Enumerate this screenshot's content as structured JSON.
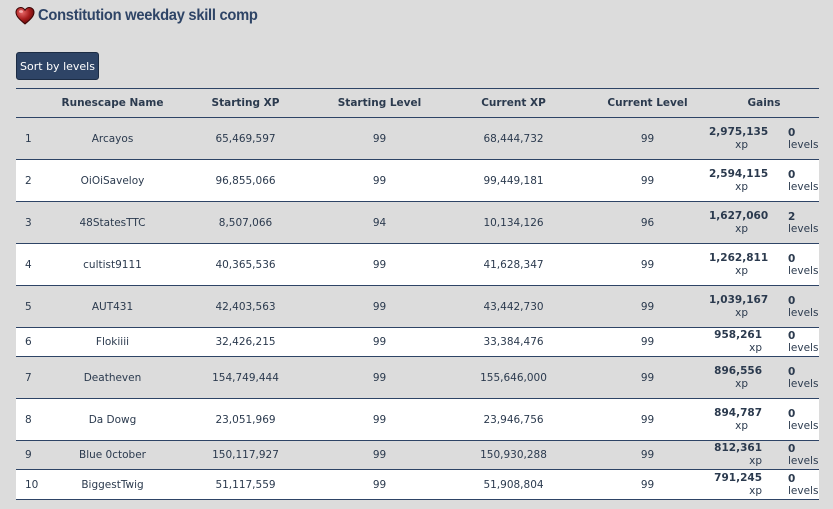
{
  "title": "Constitution weekday skill comp",
  "icons": {
    "title_icon": "heart-icon"
  },
  "colors": {
    "accent": "#2e4466",
    "heart": "#9b1b1b"
  },
  "sort_button_label": "Sort by levels",
  "columns": [
    "Runescape Name",
    "Starting XP",
    "Starting Level",
    "Current XP",
    "Current Level",
    "Gains"
  ],
  "xp_unit": "xp",
  "levels_unit": "levels",
  "rows": [
    {
      "rank": "1",
      "name": "Arcayos",
      "start_xp": "65,469,597",
      "start_level": "99",
      "current_xp": "68,444,732",
      "current_level": "99",
      "gain_xp": "2,975,135",
      "gain_levels": "0"
    },
    {
      "rank": "2",
      "name": "OiOiSaveloy",
      "start_xp": "96,855,066",
      "start_level": "99",
      "current_xp": "99,449,181",
      "current_level": "99",
      "gain_xp": "2,594,115",
      "gain_levels": "0"
    },
    {
      "rank": "3",
      "name": "48StatesTTC",
      "start_xp": "8,507,066",
      "start_level": "94",
      "current_xp": "10,134,126",
      "current_level": "96",
      "gain_xp": "1,627,060",
      "gain_levels": "2"
    },
    {
      "rank": "4",
      "name": "cultist9111",
      "start_xp": "40,365,536",
      "start_level": "99",
      "current_xp": "41,628,347",
      "current_level": "99",
      "gain_xp": "1,262,811",
      "gain_levels": "0"
    },
    {
      "rank": "5",
      "name": "AUT431",
      "start_xp": "42,403,563",
      "start_level": "99",
      "current_xp": "43,442,730",
      "current_level": "99",
      "gain_xp": "1,039,167",
      "gain_levels": "0"
    },
    {
      "rank": "6",
      "name": "Flokiiii",
      "start_xp": "32,426,215",
      "start_level": "99",
      "current_xp": "33,384,476",
      "current_level": "99",
      "gain_xp": "958,261",
      "gain_levels": "0"
    },
    {
      "rank": "7",
      "name": "Deatheven",
      "start_xp": "154,749,444",
      "start_level": "99",
      "current_xp": "155,646,000",
      "current_level": "99",
      "gain_xp": "896,556",
      "gain_levels": "0"
    },
    {
      "rank": "8",
      "name": "Da Dowg",
      "start_xp": "23,051,969",
      "start_level": "99",
      "current_xp": "23,946,756",
      "current_level": "99",
      "gain_xp": "894,787",
      "gain_levels": "0"
    },
    {
      "rank": "9",
      "name": "Blue 0ctober",
      "start_xp": "150,117,927",
      "start_level": "99",
      "current_xp": "150,930,288",
      "current_level": "99",
      "gain_xp": "812,361",
      "gain_levels": "0"
    },
    {
      "rank": "10",
      "name": "BiggestTwig",
      "start_xp": "51,117,559",
      "start_level": "99",
      "current_xp": "51,908,804",
      "current_level": "99",
      "gain_xp": "791,245",
      "gain_levels": "0"
    }
  ]
}
